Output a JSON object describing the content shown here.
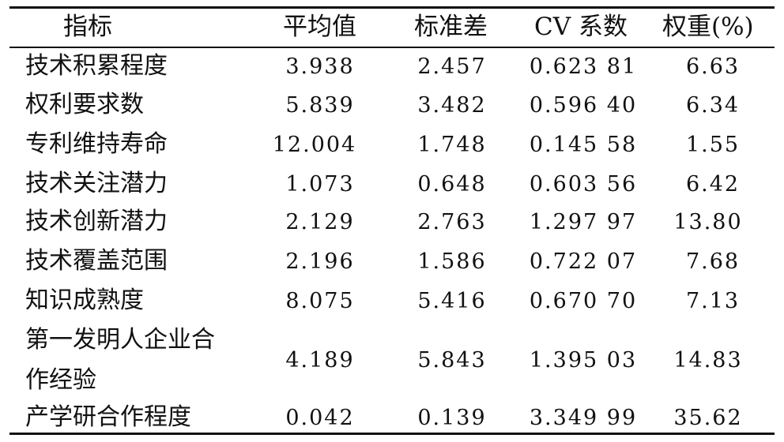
{
  "table": {
    "headers": [
      "指标",
      "平均值",
      "标准差",
      "CV 系数",
      "权重(%)"
    ],
    "rows": [
      {
        "name": "技术积累程度",
        "mean": "3.938",
        "sd": "2.457",
        "cv": "0.623 81",
        "weight": "6.63"
      },
      {
        "name": "权利要求数",
        "mean": "5.839",
        "sd": "3.482",
        "cv": "0.596 40",
        "weight": "6.34"
      },
      {
        "name": "专利维持寿命",
        "mean": "12.004",
        "sd": "1.748",
        "cv": "0.145 58",
        "weight": "1.55"
      },
      {
        "name": "技术关注潜力",
        "mean": "1.073",
        "sd": "0.648",
        "cv": "0.603 56",
        "weight": "6.42"
      },
      {
        "name": "技术创新潜力",
        "mean": "2.129",
        "sd": "2.763",
        "cv": "1.297 97",
        "weight": "13.80"
      },
      {
        "name": "技术覆盖范围",
        "mean": "2.196",
        "sd": "1.586",
        "cv": "0.722 07",
        "weight": "7.68"
      },
      {
        "name": "知识成熟度",
        "mean": "8.075",
        "sd": "5.416",
        "cv": "0.670 70",
        "weight": "7.13"
      },
      {
        "name_line1": "第一发明人企业合",
        "name_line2": "作经验",
        "mean": "4.189",
        "sd": "5.843",
        "cv": "1.395 03",
        "weight": "14.83"
      },
      {
        "name": "产学研合作程度",
        "mean": "0.042",
        "sd": "0.139",
        "cv": "3.349 99",
        "weight": "35.62"
      }
    ]
  }
}
